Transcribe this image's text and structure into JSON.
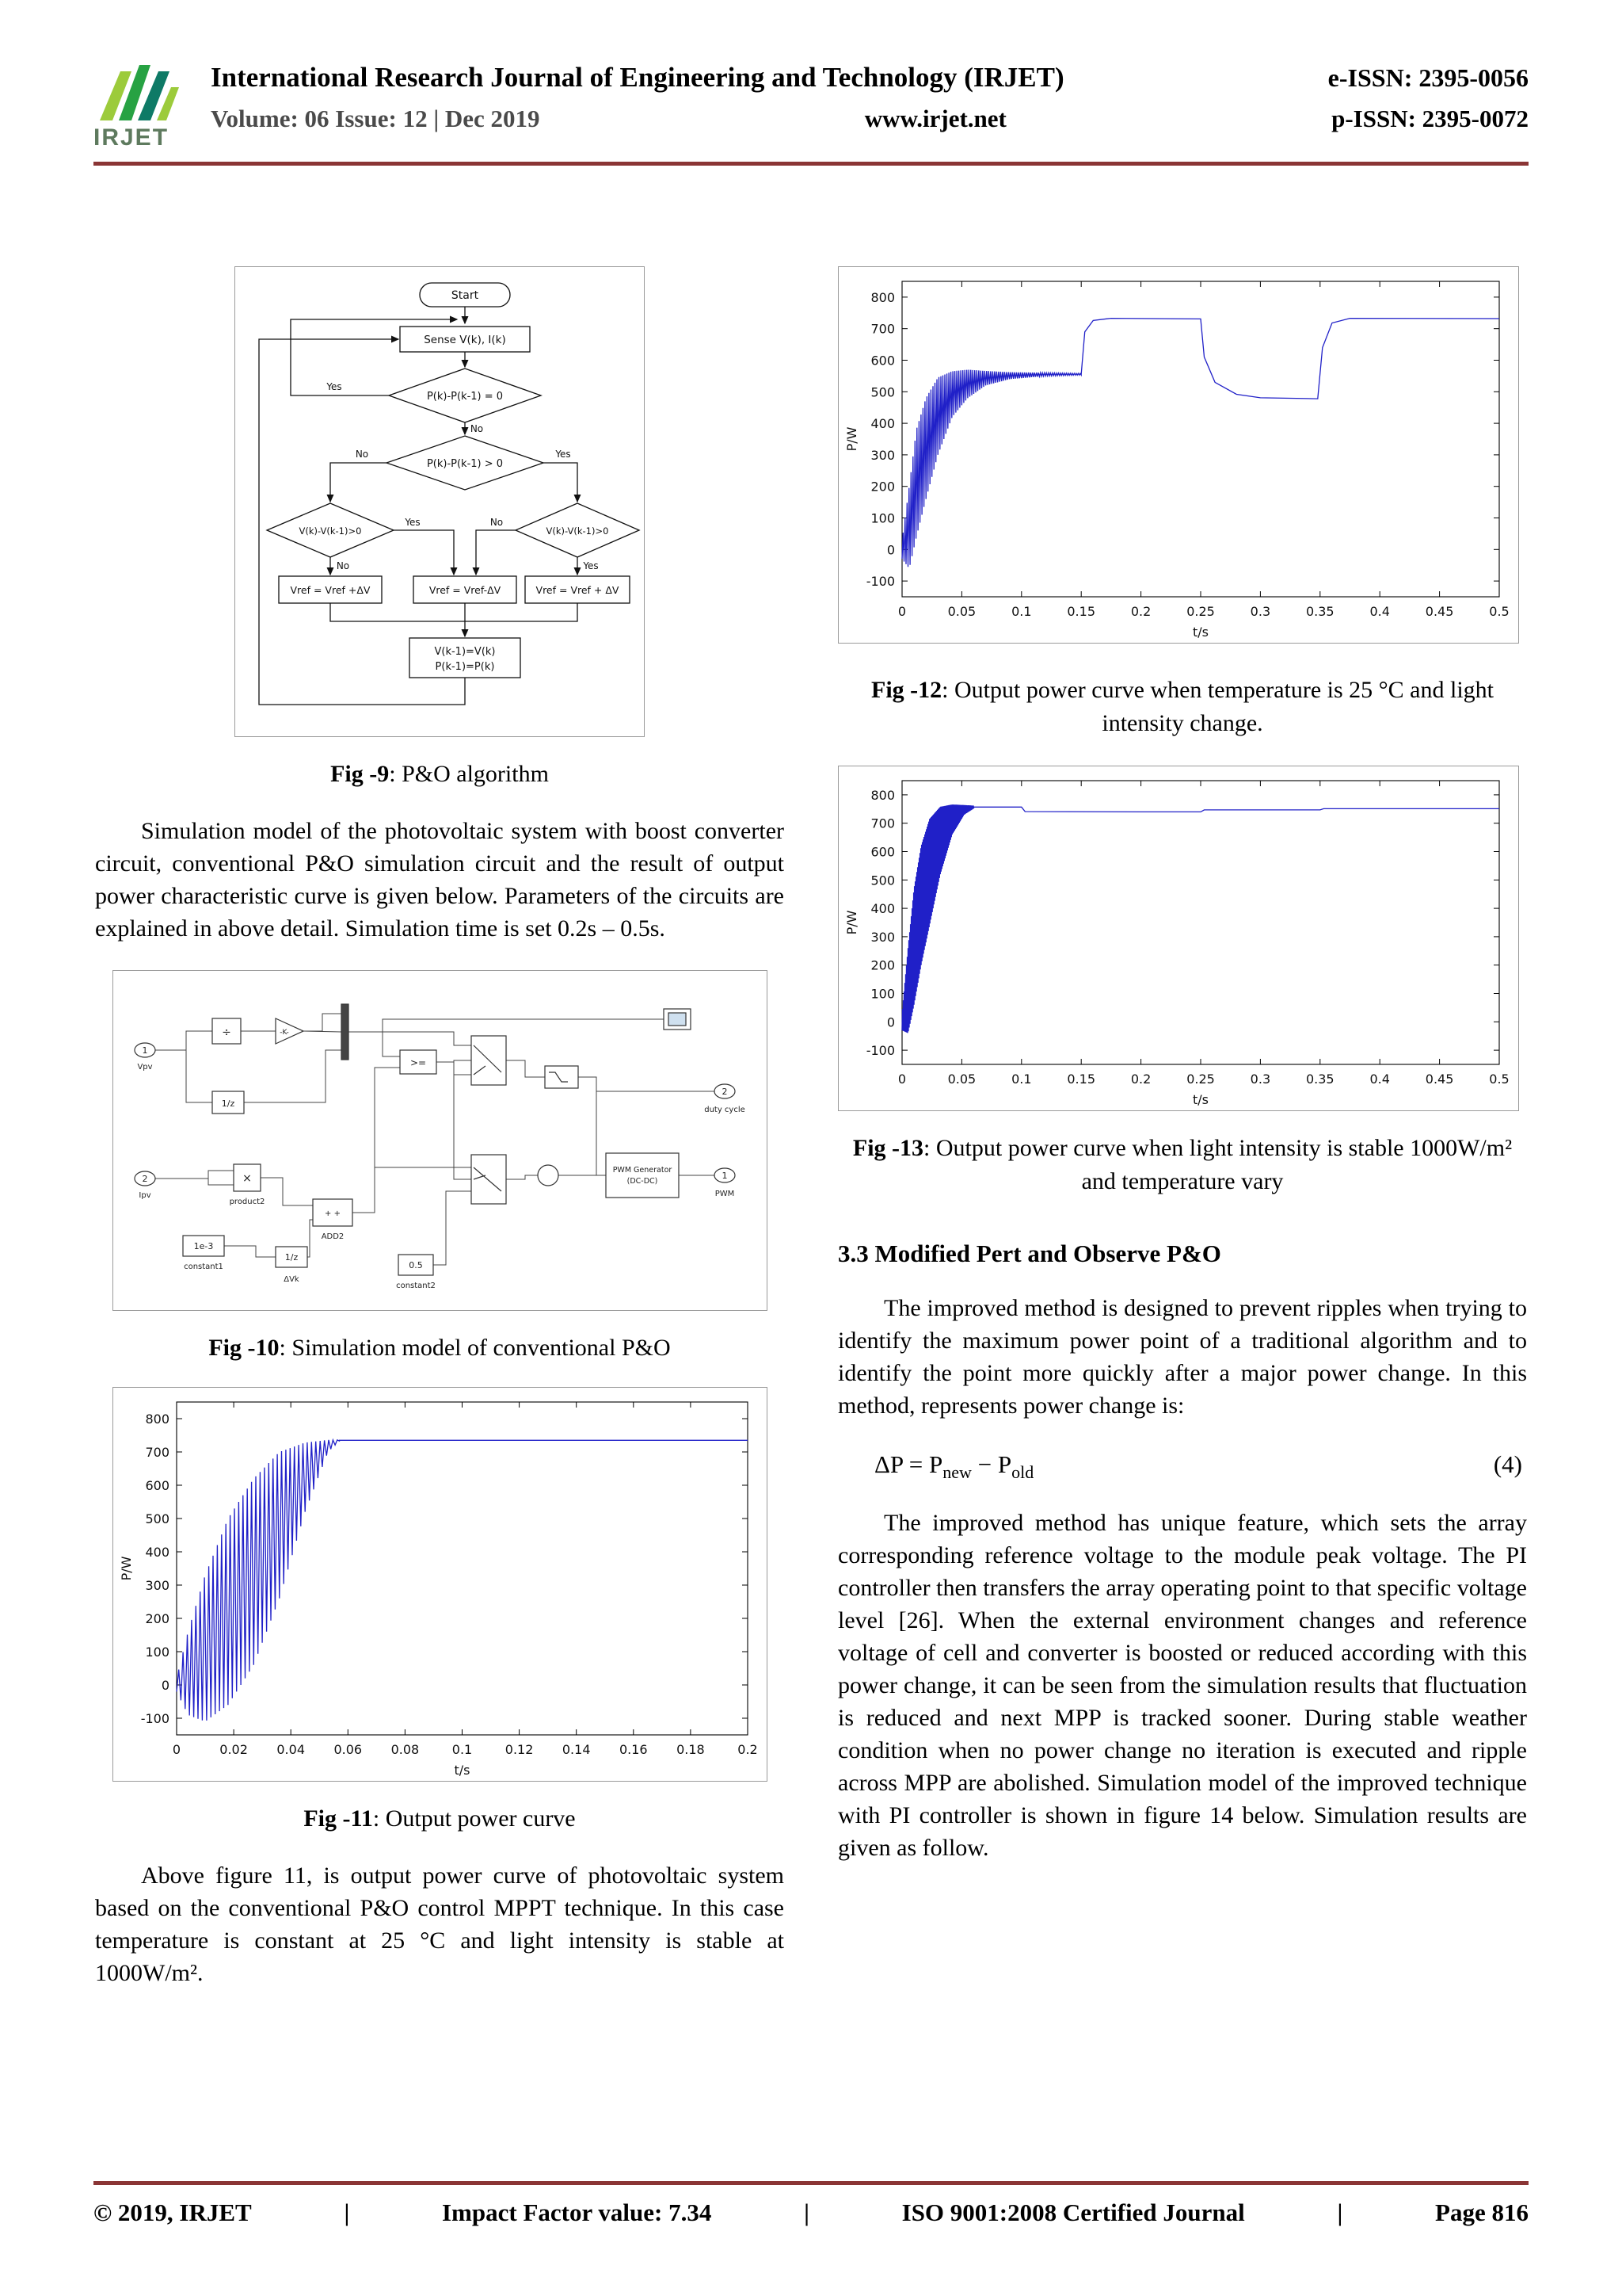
{
  "colors": {
    "rule": "#8a3535",
    "chart_line": "#2020c8",
    "logo_green_light": "#9ccb3b",
    "logo_green": "#27a243",
    "logo_teal": "#0e7a66"
  },
  "header": {
    "logo_text": "IRJET",
    "journal_title": "International Research Journal of Engineering and Technology (IRJET)",
    "eissn": "e-ISSN: 2395-0056",
    "volume_line": "Volume: 06 Issue: 12 | Dec 2019",
    "website": "www.irjet.net",
    "pissn": "p-ISSN: 2395-0072"
  },
  "flowchart": {
    "start": "Start",
    "sense": "Sense V(k), I(k)",
    "cond_equal": "P(k)-P(k-1) = 0",
    "cond_greater": "P(k)-P(k-1) > 0",
    "cond_left": "V(k)-V(k-1)>0",
    "cond_right": "V(k)-V(k-1)>0",
    "box_left": "Vref = Vref +ΔV",
    "box_mid": "Vref = Vref-ΔV",
    "box_right": "Vref = Vref + ΔV",
    "update_line1": "V(k-1)=V(k)",
    "update_line2": "P(k-1)=P(k)",
    "yes": "Yes",
    "no": "No"
  },
  "sim_model": {
    "in1": "1",
    "in2": "2",
    "vpv": "Vpv",
    "ipv": "Ipv",
    "divide": "÷",
    "gain": "-K-",
    "delay": "1/z",
    "product_sym": "×",
    "product2": "product2",
    "add2_sym": "+ +",
    "add2": "ADD2",
    "delay2": "1/z",
    "dvk": "ΔVk",
    "c1val": "1e-3",
    "constant1": "constant1",
    "c2val": "0.5",
    "constant2": "constant2",
    "relational": ">=",
    "pwm_line1": "PWM Generator",
    "pwm_line2": "(DC-DC)",
    "out2": "2",
    "duty": "duty cycle",
    "out1": "1",
    "pwm": "PWM"
  },
  "left_column": {
    "fig9_caption_label": "Fig -9",
    "fig9_caption_text": ": P&O algorithm",
    "para1": "Simulation model of the photovoltaic system with boost converter circuit, conventional P&O simulation circuit and the result of output power characteristic curve is given below. Parameters of the circuits are explained in above detail. Simulation time is set 0.2s – 0.5s.",
    "fig10_caption_label": "Fig -10",
    "fig10_caption_text": ": Simulation model of conventional P&O",
    "fig11_caption_label": "Fig -11",
    "fig11_caption_text": ": Output power curve",
    "para2": "Above figure 11, is output power curve of photovoltaic system based on the conventional P&O control MPPT technique. In this case temperature is constant at 25 °C and light intensity is stable at 1000W/m²."
  },
  "right_column": {
    "fig12_caption_label": "Fig -12",
    "fig12_caption_text": ": Output power curve when temperature is 25 °C and light intensity change.",
    "fig13_caption_label": "Fig -13",
    "fig13_caption_text": ": Output power curve when light intensity is stable 1000W/m² and temperature vary",
    "section_heading": "3.3 Modified Pert and Observe P&O",
    "para1": "The improved method is designed to prevent ripples when trying to identify the maximum power point of a traditional algorithm and to identify the point more quickly after a major power change. In this method, represents power change is:",
    "equation": {
      "lead": "ΔP = P",
      "sub_a": "new",
      "mid": " − P",
      "sub_b": "old",
      "number": "(4)"
    },
    "para2": "The improved method has unique feature, which sets the array corresponding reference voltage to the module peak voltage. The PI controller then transfers the array operating point to that specific voltage level [26]. When the external environment changes and reference voltage of cell and converter is boosted or reduced according with this power change, it can be seen from the simulation results that fluctuation is reduced and next MPP is tracked sooner. During stable weather condition when no power change no iteration is executed and ripple across MPP are abolished. Simulation model of the improved technique with PI controller is shown in figure 14 below. Simulation results are given as follow."
  },
  "footer": {
    "copyright": "© 2019, IRJET",
    "sep": "|",
    "impact": "Impact Factor value: 7.34",
    "iso": "ISO 9001:2008 Certified Journal",
    "page": "Page 816"
  },
  "chart_data": [
    {
      "name": "Fig -11 Output power curve (conventional P&O, constant 25 °C, 1000W/m²)",
      "type": "line",
      "xlabel": "t/s",
      "ylabel": "P/W",
      "xlim": [
        0,
        0.2
      ],
      "ylim": [
        -150,
        850
      ],
      "xticks": [
        0,
        0.02,
        0.04,
        0.06,
        0.08,
        0.1,
        0.12,
        0.14,
        0.16,
        0.18,
        0.2
      ],
      "xtick_labels": [
        "0",
        "0.02",
        "0.04",
        "0.06",
        "0.08",
        "0.1",
        "0.12",
        "0.14",
        "0.16",
        "0.18",
        "0.2"
      ],
      "yticks": [
        -100,
        0,
        100,
        200,
        300,
        400,
        500,
        600,
        700,
        800
      ],
      "ytick_labels": [
        "-100",
        "0",
        "100",
        "200",
        "300",
        "400",
        "500",
        "600",
        "700",
        "800"
      ],
      "line_color": "#2020c8",
      "grid": false,
      "legend": null,
      "segments": [
        {
          "mode": "ripple",
          "cycles": 38,
          "envelope": [
            [
              0,
              -20,
              20
            ],
            [
              0.004,
              -90,
              160
            ],
            [
              0.01,
              -110,
              330
            ],
            [
              0.018,
              -60,
              500
            ],
            [
              0.027,
              60,
              620
            ],
            [
              0.036,
              260,
              700
            ],
            [
              0.045,
              520,
              728
            ],
            [
              0.053,
              700,
              736
            ],
            [
              0.057,
              733,
              736
            ]
          ]
        },
        {
          "mode": "line",
          "points": [
            [
              0.057,
              735
            ],
            [
              0.2,
              735
            ]
          ]
        }
      ]
    },
    {
      "name": "Fig -12 Output power curve, temperature 25 °C, light intensity changing",
      "type": "line",
      "xlabel": "t/s",
      "ylabel": "P/W",
      "xlim": [
        0,
        0.5
      ],
      "ylim": [
        -150,
        850
      ],
      "xticks": [
        0,
        0.05,
        0.1,
        0.15,
        0.2,
        0.25,
        0.3,
        0.35,
        0.4,
        0.45,
        0.5
      ],
      "xtick_labels": [
        "0",
        "0.05",
        "0.1",
        "0.15",
        "0.2",
        "0.25",
        "0.3",
        "0.35",
        "0.4",
        "0.45",
        "0.5"
      ],
      "yticks": [
        -100,
        0,
        100,
        200,
        300,
        400,
        500,
        600,
        700,
        800
      ],
      "ytick_labels": [
        "-100",
        "0",
        "100",
        "200",
        "300",
        "400",
        "500",
        "600",
        "700",
        "800"
      ],
      "line_color": "#2020c8",
      "grid": false,
      "legend": null,
      "segments": [
        {
          "mode": "ripple",
          "cycles": 90,
          "envelope": [
            [
              0,
              -30,
              30
            ],
            [
              0.006,
              -60,
              200
            ],
            [
              0.012,
              40,
              380
            ],
            [
              0.02,
              160,
              480
            ],
            [
              0.03,
              300,
              545
            ],
            [
              0.042,
              420,
              565
            ],
            [
              0.055,
              480,
              570
            ],
            [
              0.07,
              520,
              566
            ],
            [
              0.09,
              540,
              562
            ],
            [
              0.12,
              550,
              560
            ],
            [
              0.15,
              553,
              558
            ]
          ]
        },
        {
          "mode": "line",
          "points": [
            [
              0.15,
              556
            ],
            [
              0.153,
              690
            ],
            [
              0.16,
              726
            ],
            [
              0.175,
              733
            ],
            [
              0.25,
              731
            ],
            [
              0.253,
              610
            ],
            [
              0.262,
              530
            ],
            [
              0.28,
              492
            ],
            [
              0.3,
              481
            ],
            [
              0.348,
              478
            ],
            [
              0.352,
              640
            ],
            [
              0.36,
              718
            ],
            [
              0.375,
              733
            ],
            [
              0.5,
              732
            ]
          ]
        }
      ]
    },
    {
      "name": "Fig -13 Output power curve, light intensity stable 1000W/m², temperature varying",
      "type": "line",
      "xlabel": "t/s",
      "ylabel": "P/W",
      "xlim": [
        0,
        0.5
      ],
      "ylim": [
        -150,
        850
      ],
      "xticks": [
        0,
        0.05,
        0.1,
        0.15,
        0.2,
        0.25,
        0.3,
        0.35,
        0.4,
        0.45,
        0.5
      ],
      "xtick_labels": [
        "0",
        "0.05",
        "0.1",
        "0.15",
        "0.2",
        "0.25",
        "0.3",
        "0.35",
        "0.4",
        "0.45",
        "0.5"
      ],
      "yticks": [
        -100,
        0,
        100,
        200,
        300,
        400,
        500,
        600,
        700,
        800
      ],
      "ytick_labels": [
        "-100",
        "0",
        "100",
        "200",
        "300",
        "400",
        "500",
        "600",
        "700",
        "800"
      ],
      "line_color": "#2020c8",
      "grid": false,
      "legend": null,
      "segments": [
        {
          "mode": "ripple",
          "cycles": 90,
          "envelope": [
            [
              0,
              -30,
              30
            ],
            [
              0.005,
              -40,
              260
            ],
            [
              0.01,
              60,
              470
            ],
            [
              0.016,
              200,
              620
            ],
            [
              0.023,
              340,
              715
            ],
            [
              0.032,
              520,
              758
            ],
            [
              0.042,
              660,
              766
            ],
            [
              0.052,
              730,
              764
            ],
            [
              0.06,
              752,
              762
            ]
          ]
        },
        {
          "mode": "line",
          "points": [
            [
              0.06,
              757
            ],
            [
              0.1,
              757
            ],
            [
              0.103,
              741
            ],
            [
              0.2,
              740
            ],
            [
              0.25,
              740
            ],
            [
              0.253,
              747
            ],
            [
              0.3,
              747
            ],
            [
              0.35,
              747
            ],
            [
              0.353,
              751
            ],
            [
              0.5,
              751
            ]
          ]
        }
      ]
    }
  ]
}
